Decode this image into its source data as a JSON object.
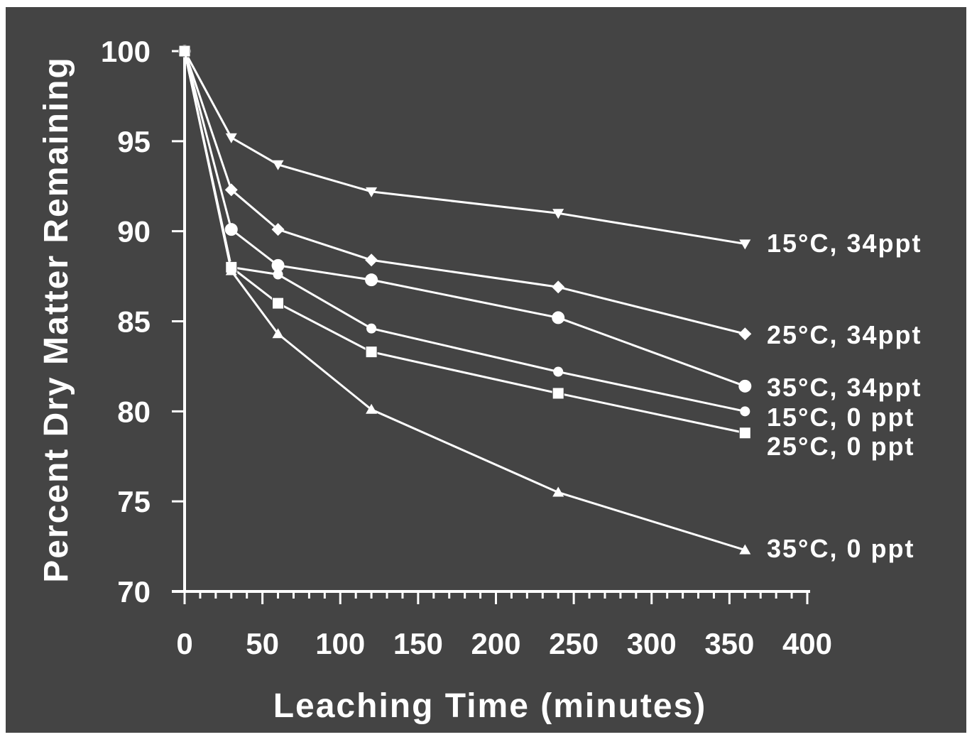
{
  "chart_data": {
    "type": "line",
    "title": "",
    "xlabel": "Leaching Time (minutes)",
    "ylabel": "Percent Dry Matter Remaining",
    "xlim": [
      0,
      400
    ],
    "ylim": [
      70,
      100
    ],
    "xticks": [
      0,
      50,
      100,
      150,
      200,
      250,
      300,
      350,
      400
    ],
    "yticks": [
      70,
      75,
      80,
      85,
      90,
      95,
      100
    ],
    "grid": false,
    "legend": "none (series labeled at line ends)",
    "series": [
      {
        "name": "15°C, 34ppt",
        "marker": "triangle-down",
        "x": [
          0,
          30,
          60,
          120,
          240,
          360
        ],
        "y": [
          100,
          95.2,
          93.7,
          92.2,
          91.0,
          89.3
        ]
      },
      {
        "name": "25°C, 34ppt",
        "marker": "diamond",
        "x": [
          0,
          30,
          60,
          120,
          240,
          360
        ],
        "y": [
          100,
          92.3,
          90.1,
          88.4,
          86.9,
          84.3
        ]
      },
      {
        "name": "35°C, 34ppt",
        "marker": "circle",
        "x": [
          0,
          30,
          60,
          120,
          240,
          360
        ],
        "y": [
          100,
          90.1,
          88.1,
          87.3,
          85.2,
          81.4
        ]
      },
      {
        "name": "15°C, 0 ppt",
        "marker": "small-circle",
        "x": [
          0,
          30,
          60,
          120,
          240,
          360
        ],
        "y": [
          100,
          88.0,
          87.6,
          84.6,
          82.2,
          80.0
        ]
      },
      {
        "name": "25°C, 0 ppt",
        "marker": "square",
        "x": [
          0,
          30,
          60,
          120,
          240,
          360
        ],
        "y": [
          100,
          88.0,
          86.0,
          83.3,
          81.0,
          78.8
        ]
      },
      {
        "name": "35°C, 0 ppt",
        "marker": "triangle-up",
        "x": [
          0,
          30,
          60,
          120,
          240,
          360
        ],
        "y": [
          100,
          87.8,
          84.3,
          80.1,
          75.5,
          72.3
        ]
      }
    ],
    "colors": {
      "background": "#444444",
      "foreground": "#ffffff"
    }
  }
}
